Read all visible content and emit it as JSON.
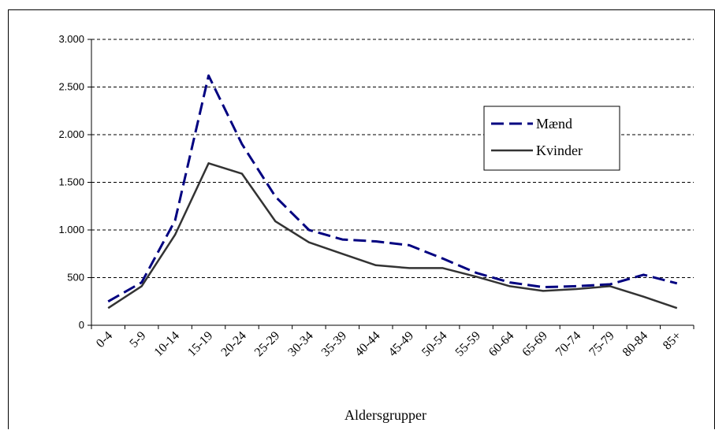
{
  "chart_data": {
    "type": "line",
    "title": "",
    "xlabel": "Aldersgrupper",
    "ylabel": "",
    "categories": [
      "0-4",
      "5-9",
      "10-14",
      "15-19",
      "20-24",
      "25-29",
      "30-34",
      "35-39",
      "40-44",
      "45-49",
      "50-54",
      "55-59",
      "60-64",
      "65-69",
      "70-74",
      "75-79",
      "80-84",
      "85+"
    ],
    "ylim": [
      0,
      3000
    ],
    "yticks": [
      0,
      500,
      1000,
      1500,
      2000,
      2500,
      3000
    ],
    "ytick_labels": [
      "0",
      "500",
      "1.000",
      "1.500",
      "2.000",
      "2.500",
      "3.000"
    ],
    "grid": true,
    "legend_position": "right",
    "series": [
      {
        "name": "Mænd",
        "color": "#000080",
        "style": "dashed",
        "values": [
          250,
          450,
          1100,
          2620,
          1900,
          1350,
          1000,
          900,
          880,
          840,
          700,
          550,
          450,
          400,
          410,
          430,
          530,
          440
        ]
      },
      {
        "name": "Kvinder",
        "color": "#333333",
        "style": "solid",
        "values": [
          180,
          410,
          950,
          1700,
          1590,
          1090,
          870,
          750,
          630,
          600,
          600,
          510,
          410,
          360,
          380,
          410,
          300,
          180
        ]
      }
    ]
  }
}
